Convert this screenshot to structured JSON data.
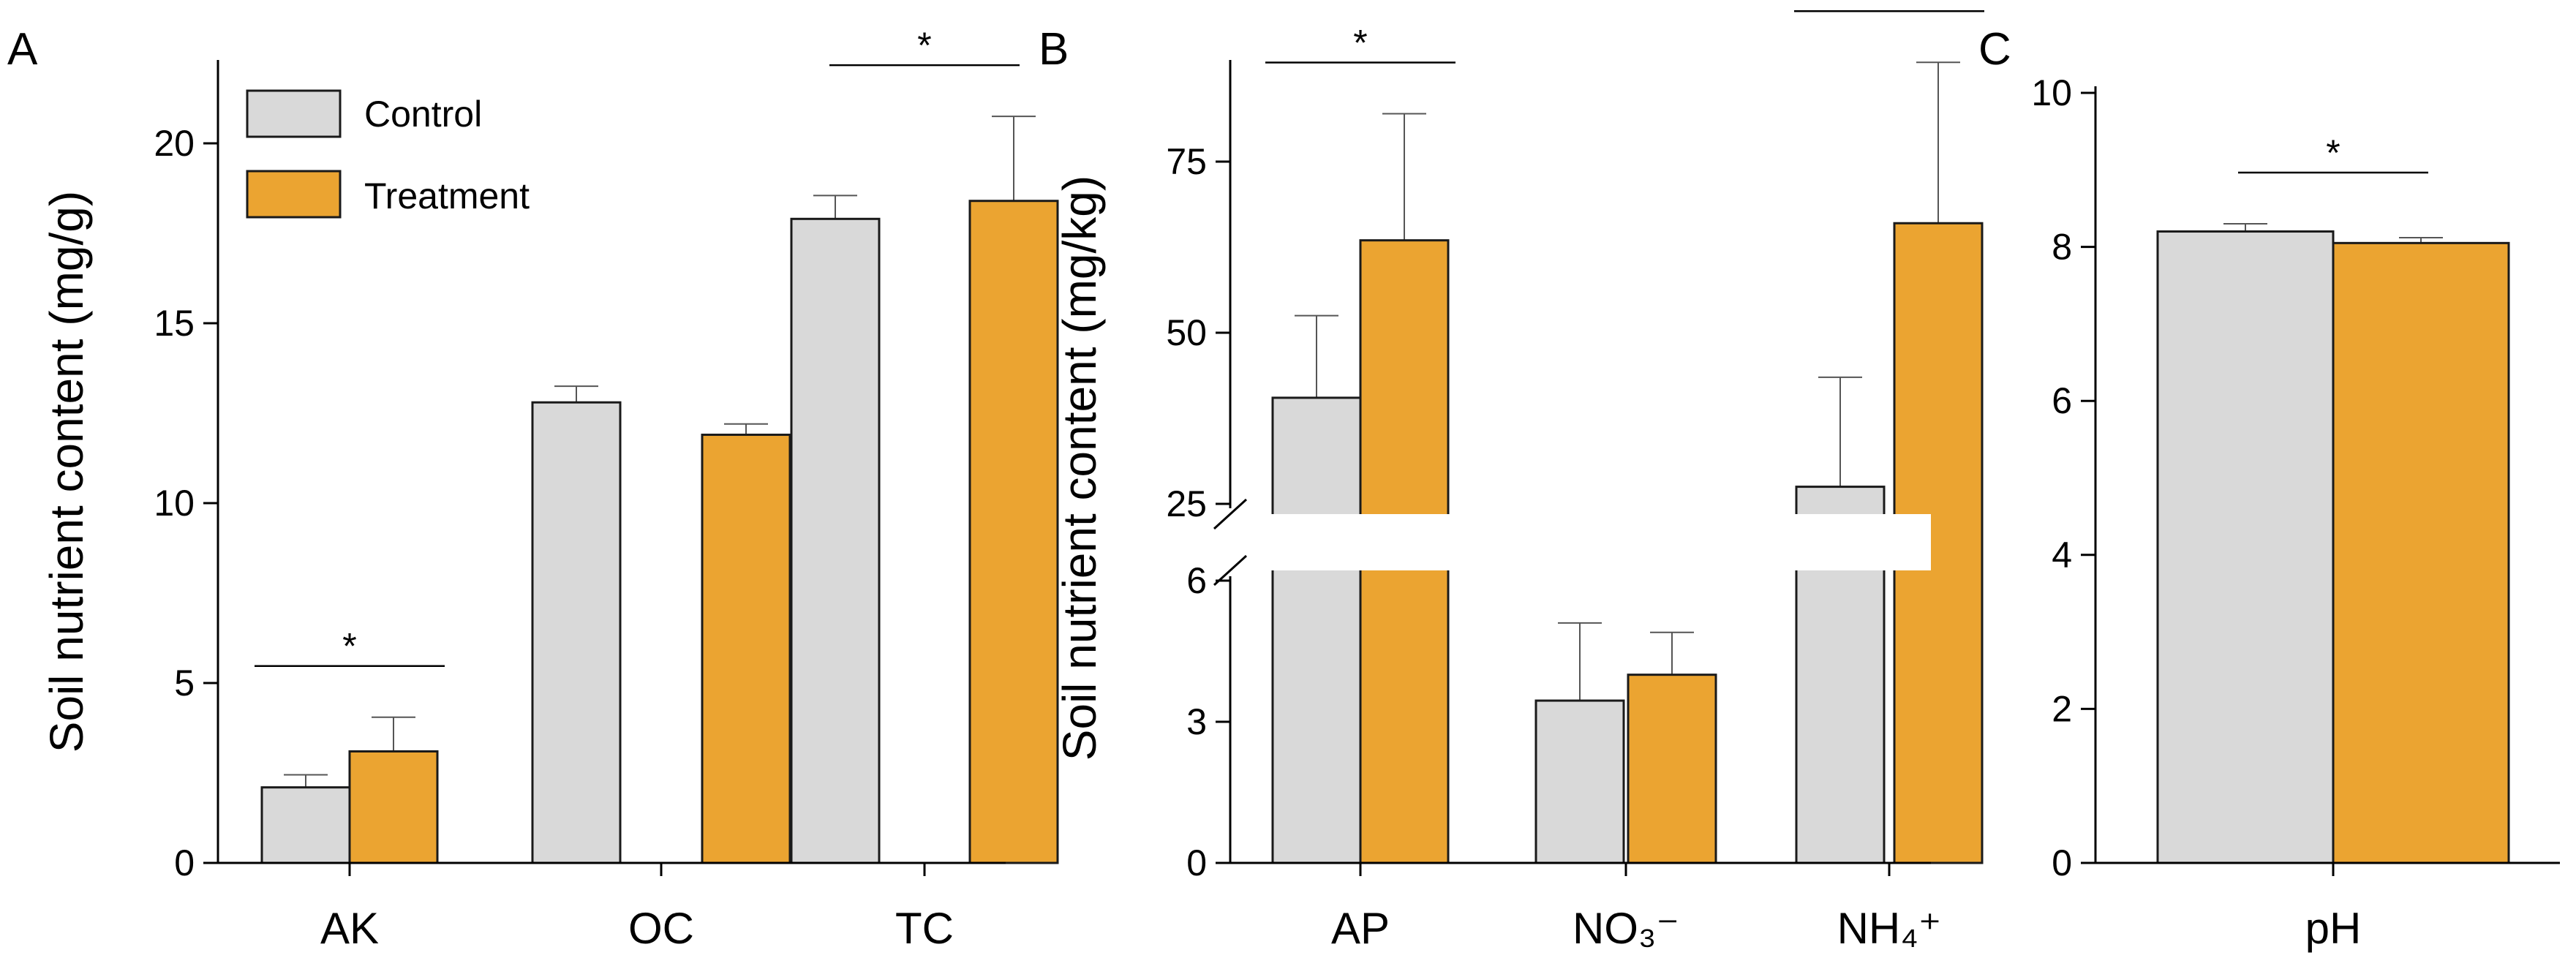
{
  "colors": {
    "control": "#d9d9d9",
    "treatment": "#eba431",
    "stroke": "#1a1a1a"
  },
  "legend": {
    "control": "Control",
    "treatment": "Treatment",
    "placement": "top-left of panel A"
  },
  "ylabel": "Soil nutrient content (mg/g)",
  "ylabel_b": "Soil nutrient content (mg/kg)",
  "chart_data": [
    {
      "panel": "A",
      "type": "bar",
      "ylabel": "Soil nutrient content (mg/g)",
      "ylim": [
        0,
        22
      ],
      "yticks": [
        0,
        5,
        10,
        15,
        20
      ],
      "categories": [
        "AK",
        "OC",
        "TC"
      ],
      "series": [
        {
          "name": "Control",
          "values": [
            2.1,
            12.8,
            17.9
          ],
          "errors": [
            0.35,
            0.45,
            0.65
          ]
        },
        {
          "name": "Treatment",
          "values": [
            3.1,
            11.9,
            18.4
          ],
          "errors": [
            0.95,
            0.3,
            2.35
          ]
        }
      ],
      "significance": [
        {
          "category": "AK",
          "label": "*"
        },
        {
          "category": "TC",
          "label": "*"
        }
      ]
    },
    {
      "panel": "B",
      "type": "bar",
      "ylabel": "Soil nutrient content (mg/kg)",
      "axis_break": {
        "from": 6,
        "to": 25
      },
      "ylim": [
        0,
        90
      ],
      "yticks": [
        0,
        3,
        6,
        25,
        50,
        75
      ],
      "categories": [
        "AP",
        "NO₃⁻",
        "NH₄⁺"
      ],
      "series": [
        {
          "name": "Control",
          "values": [
            40.5,
            3.45,
            27.5
          ],
          "errors": [
            12.0,
            1.65,
            16.0
          ]
        },
        {
          "name": "Treatment",
          "values": [
            63.5,
            4.0,
            66.0
          ],
          "errors": [
            18.5,
            0.9,
            23.5
          ]
        }
      ],
      "significance": [
        {
          "category": "AP",
          "label": "*"
        },
        {
          "category": "NH₄⁺",
          "label": "*"
        }
      ]
    },
    {
      "panel": "C",
      "type": "bar",
      "ylim": [
        0,
        10
      ],
      "yticks": [
        0,
        2,
        4,
        6,
        8,
        10
      ],
      "categories": [
        "pH"
      ],
      "series": [
        {
          "name": "Control",
          "values": [
            8.2
          ],
          "errors": [
            0.1
          ]
        },
        {
          "name": "Treatment",
          "values": [
            8.05
          ],
          "errors": [
            0.07
          ]
        }
      ],
      "significance": [
        {
          "category": "pH",
          "label": "*"
        }
      ]
    }
  ]
}
